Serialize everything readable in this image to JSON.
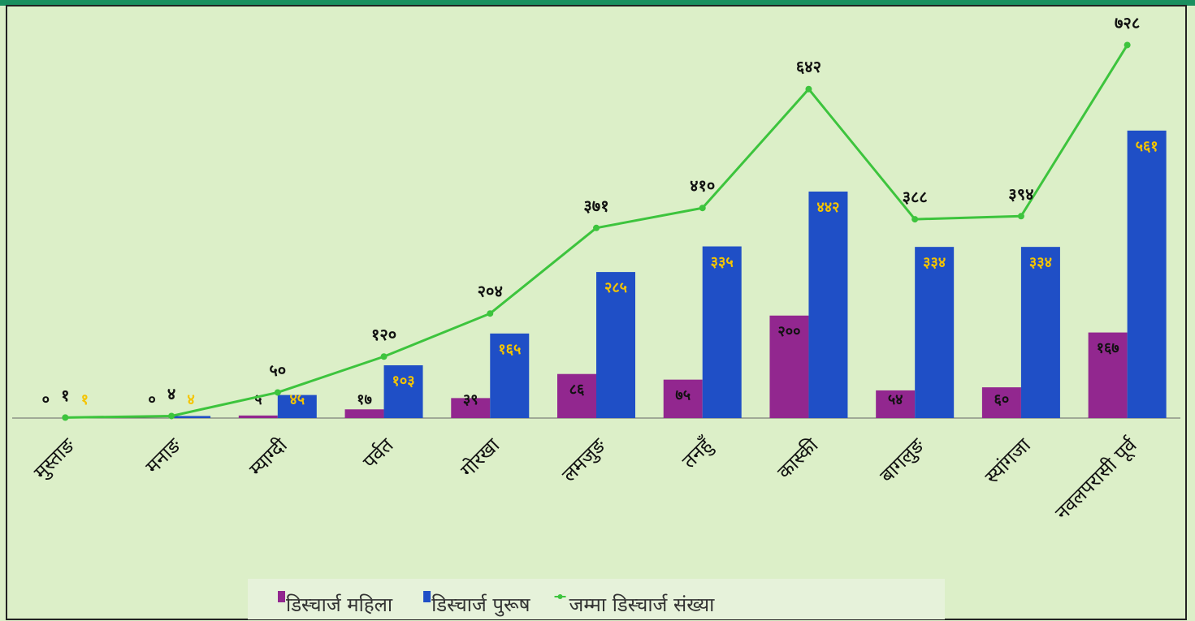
{
  "chart_data": {
    "type": "bar",
    "categories": [
      "मुस्ताङ",
      "मनाङ",
      "म्याग्दी",
      "पर्वत",
      "गोरखा",
      "लमजुङ",
      "तनहुँ",
      "कास्की",
      "बागलुङ",
      "स्यांगजा",
      "नवलपरासी पूर्व"
    ],
    "series": [
      {
        "name": "डिस्चार्ज महिला",
        "color": "#92278f",
        "label_color": "#111111",
        "values": [
          0,
          0,
          5,
          17,
          39,
          86,
          75,
          200,
          54,
          60,
          167
        ],
        "value_labels": [
          "०",
          "०",
          "५",
          "१७",
          "३९",
          "८६",
          "७५",
          "२००",
          "५४",
          "६०",
          "१६७"
        ]
      },
      {
        "name": "डिस्चार्ज पुरूष",
        "color": "#1f4fc6",
        "label_color": "#f5c400",
        "values": [
          1,
          4,
          45,
          103,
          165,
          285,
          335,
          442,
          334,
          334,
          561
        ],
        "value_labels": [
          "१",
          "४",
          "४५",
          "१०३",
          "१६५",
          "२८५",
          "३३५",
          "४४२",
          "३३४",
          "३३४",
          "५६१"
        ]
      },
      {
        "name": "जम्मा डिस्चार्ज संख्या",
        "type": "line",
        "color": "#3dc43d",
        "label_color": "#111111",
        "values": [
          1,
          4,
          50,
          120,
          204,
          371,
          410,
          642,
          388,
          394,
          728
        ],
        "value_labels": [
          "१",
          "४",
          "५०",
          "१२०",
          "२०४",
          "३७१",
          "४१०",
          "६४२",
          "३८८",
          "३९४",
          "७२८"
        ]
      }
    ],
    "ylim": [
      0,
      800
    ],
    "legend": "bottom"
  }
}
